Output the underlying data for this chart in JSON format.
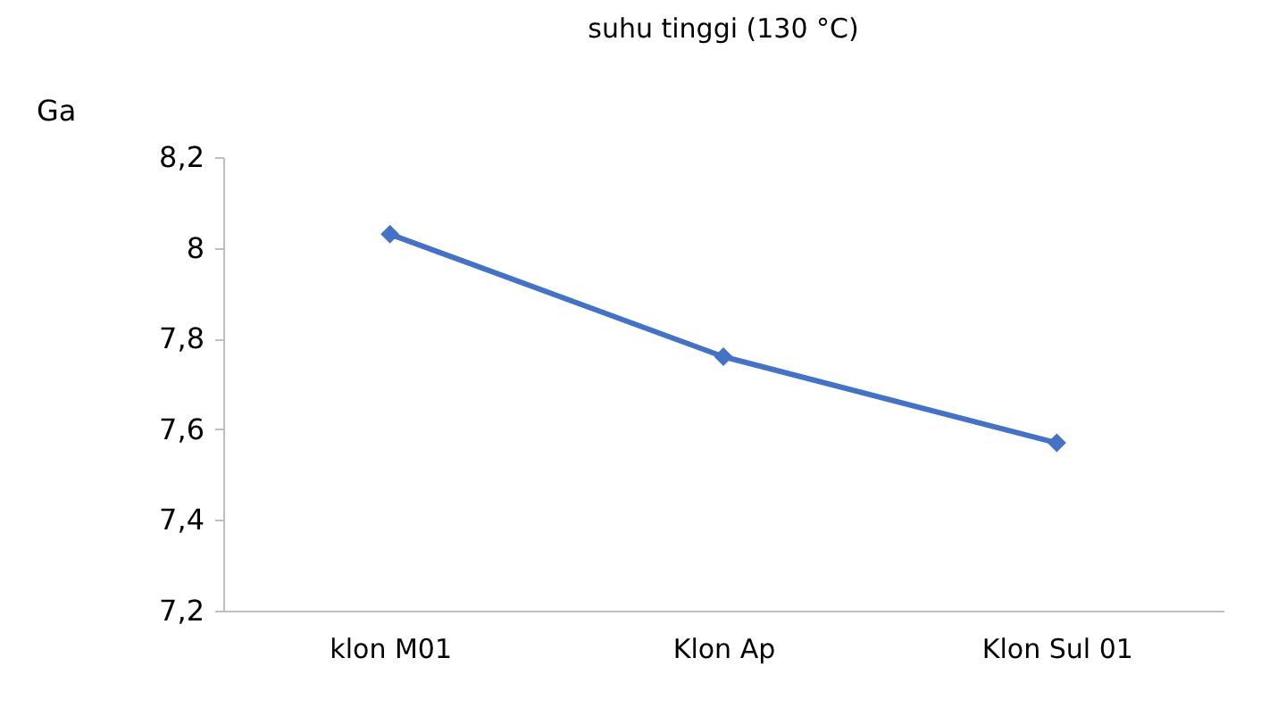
{
  "chart_data": {
    "type": "line",
    "title": "suhu tinggi (130 °C)",
    "ylabel": "Ga",
    "categories": [
      "klon M01",
      "Klon Ap",
      "Klon Sul 01"
    ],
    "series": [
      {
        "color": "#4472c4",
        "values": [
          8.03,
          7.76,
          7.57
        ]
      }
    ],
    "ylim": [
      7.2,
      8.2
    ],
    "yticks": [
      {
        "value": 7.2,
        "label": "7,2"
      },
      {
        "value": 7.4,
        "label": "7,4"
      },
      {
        "value": 7.6,
        "label": "7,6"
      },
      {
        "value": 7.8,
        "label": "7,8"
      },
      8,
      {
        "value": 8.2,
        "label": "8,2"
      }
    ],
    "grid": false,
    "marker": "diamond",
    "line_style": "solid"
  }
}
